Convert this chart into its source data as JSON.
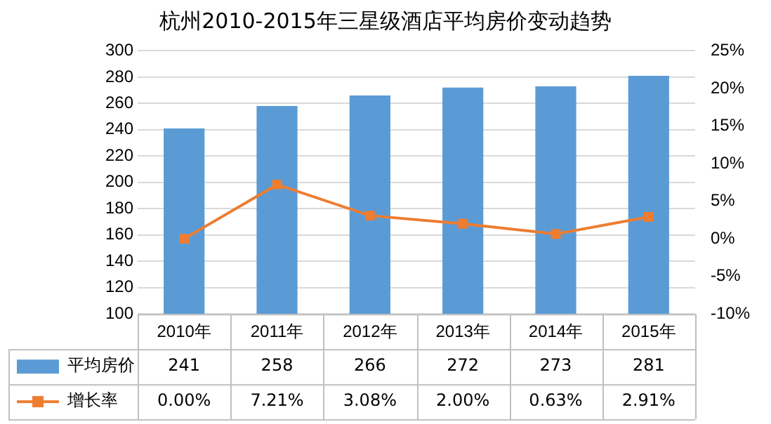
{
  "chart_data": {
    "type": "bar",
    "title": "杭州2010-2015年三星级酒店平均房价变动趋势",
    "categories": [
      "2010年",
      "2011年",
      "2012年",
      "2013年",
      "2014年",
      "2015年"
    ],
    "series": [
      {
        "name": "平均房价",
        "color": "#5b9bd5",
        "values": [
          241,
          258,
          266,
          272,
          273,
          281
        ],
        "value_labels": [
          "241",
          "258",
          "266",
          "272",
          "273",
          "281"
        ]
      },
      {
        "name": "增长率",
        "type": "line",
        "axis": "y2",
        "color": "#ed7d31",
        "marker": "square",
        "values": [
          0,
          7.21,
          3.08,
          2.0,
          0.63,
          2.91
        ],
        "value_labels": [
          "0.00%",
          "7.21%",
          "3.08%",
          "2.00%",
          "0.63%",
          "2.91%"
        ]
      }
    ],
    "ylim": [
      100,
      300
    ],
    "yticks": [
      100,
      120,
      140,
      160,
      180,
      200,
      220,
      240,
      260,
      280,
      300
    ],
    "y2lim": [
      -10,
      25
    ],
    "y2ticks": [
      {
        "value": -10,
        "label": "-10%"
      },
      {
        "value": -5,
        "label": "-5%"
      },
      {
        "value": 0,
        "label": "0%"
      },
      {
        "value": 5,
        "label": "5%"
      },
      {
        "value": 10,
        "label": "10%"
      },
      {
        "value": 15,
        "label": "15%"
      },
      {
        "value": 20,
        "label": "20%"
      },
      {
        "value": 25,
        "label": "25%"
      }
    ],
    "grid": "y",
    "legend": "bottom"
  }
}
